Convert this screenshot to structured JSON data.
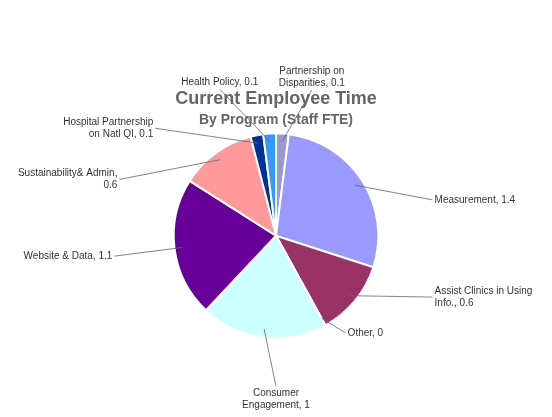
{
  "chart_data": {
    "type": "pie",
    "title": "Current Employee Time",
    "subtitle": "By Program (Staff FTE)",
    "categories": [
      "Partnership on\nDisparities, 0.1",
      "Measurement, 1.4",
      "Assist Clinics in Using\nInfo., 0.6",
      "Other, 0",
      "Consumer\nEngagement, 1",
      "Website & Data, 1.1",
      "Sustainability& Admin,\n0.6",
      "Hospital Partnership\non Natl QI, 0.1",
      "Health Policy, 0.1"
    ],
    "values": [
      0.1,
      1.4,
      0.6,
      0.001,
      1.0,
      1.1,
      0.6,
      0.1,
      0.1
    ],
    "colors": [
      "#9999CC",
      "#9999FF",
      "#993366",
      "#663366",
      "#CCFFFF",
      "#660099",
      "#FF9999",
      "#003399",
      "#3399FF"
    ]
  }
}
